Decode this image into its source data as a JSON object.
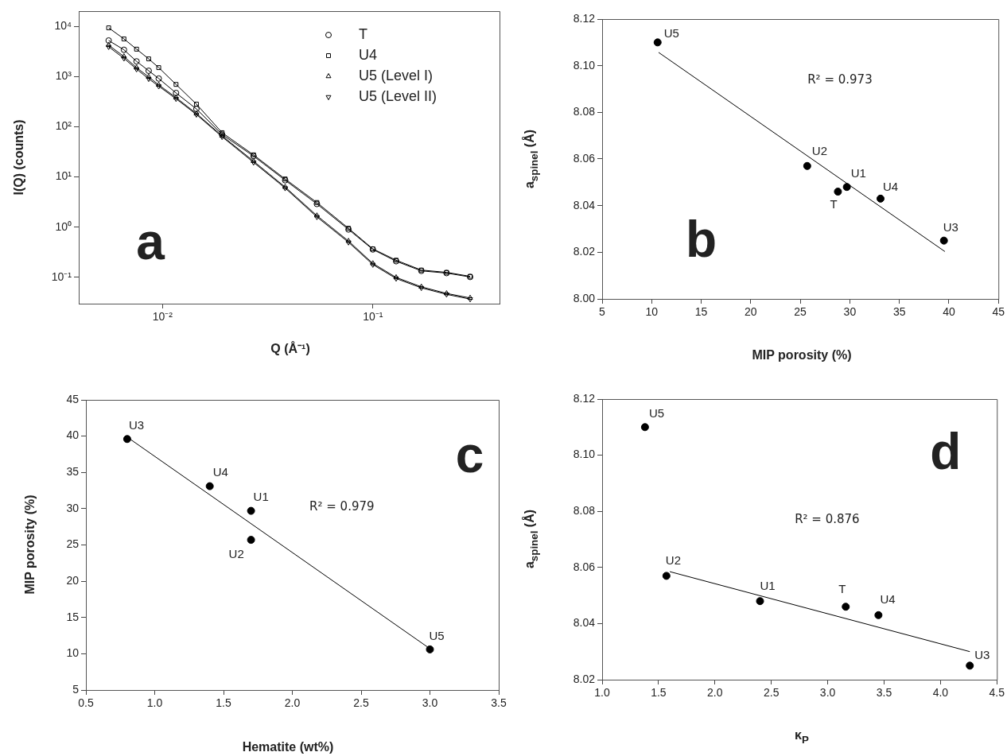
{
  "chart_data": [
    {
      "type": "line",
      "xlabel": "Q (Å⁻¹)",
      "ylabel": "I(Q) (counts)",
      "log": "xy",
      "grid": false,
      "legend": "top right",
      "xlim": [
        0.004,
        0.4
      ],
      "xticks": [
        {
          "value": 0.01,
          "label": "10⁻²"
        },
        {
          "value": 0.1,
          "label": "10⁻¹"
        }
      ],
      "ylim": [
        0.03,
        20000
      ],
      "yticks": [
        {
          "value": 0.1,
          "label": "10⁻¹"
        },
        {
          "value": 1,
          "label": "10⁰"
        },
        {
          "value": 10,
          "label": "10¹"
        },
        {
          "value": 100,
          "label": "10²"
        },
        {
          "value": 1000,
          "label": "10³"
        },
        {
          "value": 10000,
          "label": "10⁴"
        }
      ],
      "annotations": [
        "a"
      ],
      "series": [
        {
          "name": "T",
          "color": "#000000",
          "marker": "circle",
          "x": [
            0.00555,
            0.00656,
            0.00753,
            0.0086,
            0.0096,
            0.0116,
            0.0145,
            0.0192,
            0.0271,
            0.0383,
            0.0542,
            0.0766,
            0.1,
            0.129,
            0.17,
            0.224,
            0.29
          ],
          "values": [
            5200,
            3400,
            2000,
            1300,
            910,
            470,
            226,
            70,
            26,
            8.6,
            2.9,
            0.9,
            0.36,
            0.21,
            0.135,
            0.122,
            0.102
          ]
        },
        {
          "name": "U4",
          "color": "#000000",
          "marker": "square",
          "x": [
            0.00555,
            0.00656,
            0.00753,
            0.0086,
            0.0096,
            0.0116,
            0.0145,
            0.0192,
            0.0271,
            0.0383,
            0.0542,
            0.0766,
            0.1,
            0.129,
            0.17,
            0.224,
            0.29
          ],
          "values": [
            9300,
            5600,
            3500,
            2240,
            1500,
            695,
            282,
            76,
            27.5,
            9.1,
            3.1,
            0.95,
            0.37,
            0.22,
            0.14,
            0.126,
            0.105
          ]
        },
        {
          "name": "U5 (Level I)",
          "color": "#000000",
          "marker": "triangle",
          "x": [
            0.00555,
            0.00656,
            0.00753,
            0.0086,
            0.0096,
            0.0116,
            0.0145,
            0.0192,
            0.0271,
            0.0383,
            0.0542,
            0.0766,
            0.1,
            0.129,
            0.17,
            0.224,
            0.29
          ],
          "values": [
            4200,
            2500,
            1500,
            980,
            680,
            380,
            183,
            66,
            20.6,
            6.3,
            1.7,
            0.53,
            0.19,
            0.1,
            0.065,
            0.048,
            0.039
          ]
        },
        {
          "name": "U5 (Level II)",
          "color": "#000000",
          "marker": "triangle-down",
          "x": [
            0.00555,
            0.00656,
            0.00753,
            0.0086,
            0.0096,
            0.0116,
            0.0145,
            0.0192,
            0.0271,
            0.0383,
            0.0542,
            0.0766,
            0.1,
            0.129,
            0.17,
            0.224,
            0.29
          ],
          "values": [
            3900,
            2300,
            1400,
            900,
            640,
            360,
            175,
            63,
            19.5,
            6,
            1.6,
            0.5,
            0.18,
            0.095,
            0.062,
            0.046,
            0.037
          ]
        }
      ]
    },
    {
      "type": "scatter",
      "xlabel": "MIP porosity (%)",
      "ylabel": "a$_{spinel}$ (Å)",
      "grid": false,
      "marker": "circle",
      "xlim": [
        5,
        45
      ],
      "xticks": [
        5,
        10,
        15,
        20,
        25,
        30,
        35,
        40,
        45
      ],
      "ylim": [
        8,
        8.12
      ],
      "yticks": [
        {
          "value": 8,
          "label": "8.00"
        },
        {
          "value": 8.02,
          "label": "8.02"
        },
        {
          "value": 8.04,
          "label": "8.04"
        },
        {
          "value": 8.06,
          "label": "8.06"
        },
        {
          "value": 8.08,
          "label": "8.08"
        },
        {
          "value": 8.1,
          "label": "8.10"
        },
        {
          "value": 8.12,
          "label": "8.12"
        }
      ],
      "annotations": [
        "R² = 0.973",
        "b",
        {
          "text": "U5",
          "x": 10.6,
          "y": 8.11
        },
        {
          "text": "U2",
          "x": 25.7,
          "y": 8.057
        },
        {
          "text": "T",
          "x": 28.8,
          "y": 8.046
        },
        {
          "text": "U1",
          "x": 29.7,
          "y": 8.048
        },
        {
          "text": "U4",
          "x": 33.1,
          "y": 8.043
        },
        {
          "text": "U3",
          "x": 39.5,
          "y": 8.025
        }
      ],
      "series": [
        {
          "color": "#000000",
          "x": [
            10.6,
            25.7,
            28.8,
            29.7,
            33.1,
            39.5
          ],
          "values": [
            8.11,
            8.057,
            8.046,
            8.048,
            8.043,
            8.025
          ]
        },
        {
          "type": "line",
          "marker": "none",
          "color": "#000000",
          "x": [
            10.7,
            39.6
          ],
          "values": [
            8.1057,
            8.0203
          ]
        }
      ]
    },
    {
      "type": "scatter",
      "xlabel": "Hematite (wt%)",
      "ylabel": "MIP porosity (%)",
      "grid": false,
      "marker": "circle",
      "xlim": [
        0.5,
        3.5
      ],
      "xticks": [
        {
          "value": 0.5,
          "label": "0.5"
        },
        {
          "value": 1,
          "label": "1.0"
        },
        {
          "value": 1.5,
          "label": "1.5"
        },
        {
          "value": 2,
          "label": "2.0"
        },
        {
          "value": 2.5,
          "label": "2.5"
        },
        {
          "value": 3,
          "label": "3.0"
        },
        {
          "value": 3.5,
          "label": "3.5"
        }
      ],
      "ylim": [
        5,
        45
      ],
      "yticks": [
        5,
        10,
        15,
        20,
        25,
        30,
        35,
        40,
        45
      ],
      "annotations": [
        "R² = 0.979",
        "c",
        {
          "text": "U3",
          "x": 0.8,
          "y": 39.6
        },
        {
          "text": "U4",
          "x": 1.4,
          "y": 33.1
        },
        {
          "text": "U1",
          "x": 1.7,
          "y": 29.7
        },
        {
          "text": "U2",
          "x": 1.7,
          "y": 25.7
        },
        {
          "text": "U5",
          "x": 3.0,
          "y": 10.6
        }
      ],
      "series": [
        {
          "color": "#000000",
          "x": [
            0.8,
            1.4,
            1.7,
            1.7,
            3.0
          ],
          "values": [
            39.6,
            33.1,
            29.7,
            25.7,
            10.6
          ]
        },
        {
          "type": "line",
          "marker": "none",
          "color": "#000000",
          "x": [
            0.82,
            3.0
          ],
          "values": [
            39.6,
            10.7
          ]
        }
      ]
    },
    {
      "type": "scatter",
      "xlabel": "κ$_{P}$",
      "ylabel": "a$_{spinel}$ (Å)",
      "grid": false,
      "marker": "circle",
      "xlim": [
        1,
        4.5
      ],
      "xticks": [
        {
          "value": 1,
          "label": "1.0"
        },
        {
          "value": 1.5,
          "label": "1.5"
        },
        {
          "value": 2,
          "label": "2.0"
        },
        {
          "value": 2.5,
          "label": "2.5"
        },
        {
          "value": 3,
          "label": "3.0"
        },
        {
          "value": 3.5,
          "label": "3.5"
        },
        {
          "value": 4,
          "label": "4.0"
        },
        {
          "value": 4.5,
          "label": "4.5"
        }
      ],
      "ylim": [
        8.02,
        8.12
      ],
      "yticks": [
        {
          "value": 8.02,
          "label": "8.02"
        },
        {
          "value": 8.04,
          "label": "8.04"
        },
        {
          "value": 8.06,
          "label": "8.06"
        },
        {
          "value": 8.08,
          "label": "8.08"
        },
        {
          "value": 8.1,
          "label": "8.10"
        },
        {
          "value": 8.12,
          "label": "8.12"
        }
      ],
      "annotations": [
        "R² = 0.876",
        "d",
        {
          "text": "U5",
          "x": 1.38,
          "y": 8.11
        },
        {
          "text": "U2",
          "x": 1.57,
          "y": 8.057
        },
        {
          "text": "U1",
          "x": 2.4,
          "y": 8.048
        },
        {
          "text": "T",
          "x": 3.16,
          "y": 8.046
        },
        {
          "text": "U4",
          "x": 3.45,
          "y": 8.043
        },
        {
          "text": "U3",
          "x": 4.26,
          "y": 8.025
        }
      ],
      "series": [
        {
          "color": "#000000",
          "x": [
            1.38,
            1.57,
            2.4,
            3.16,
            3.45,
            4.26
          ],
          "values": [
            8.11,
            8.057,
            8.048,
            8.046,
            8.043,
            8.025
          ]
        },
        {
          "type": "line",
          "marker": "none",
          "color": "#000000",
          "x": [
            1.6,
            4.26
          ],
          "values": [
            8.0585,
            8.03
          ]
        }
      ]
    }
  ]
}
